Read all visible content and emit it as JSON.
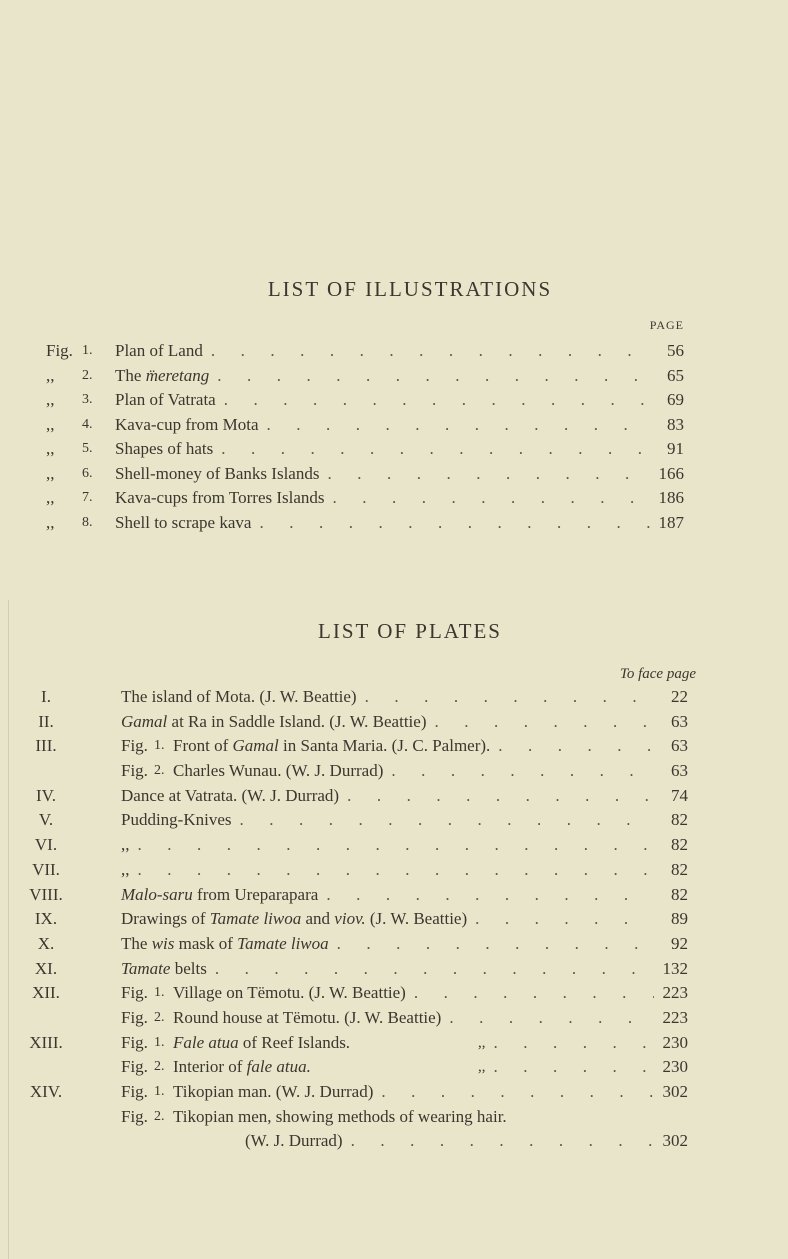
{
  "illustrations": {
    "heading": "LIST OF ILLUSTRATIONS",
    "page_header": "PAGE",
    "rows": [
      {
        "prefix": "Fig.",
        "num": "1.",
        "parts": [
          {
            "t": "Plan of Land"
          }
        ],
        "page": "56"
      },
      {
        "prefix": ",,",
        "num": "2.",
        "parts": [
          {
            "t": "The "
          },
          {
            "t": "m̈eretang",
            "i": true
          }
        ],
        "page": "65"
      },
      {
        "prefix": ",,",
        "num": "3.",
        "parts": [
          {
            "t": "Plan of Vatrata"
          }
        ],
        "page": "69"
      },
      {
        "prefix": ",,",
        "num": "4.",
        "parts": [
          {
            "t": "Kava-cup from Mota"
          }
        ],
        "page": "83"
      },
      {
        "prefix": ",,",
        "num": "5.",
        "parts": [
          {
            "t": "Shapes of hats"
          }
        ],
        "page": "91"
      },
      {
        "prefix": ",,",
        "num": "6.",
        "parts": [
          {
            "t": "Shell-money of Banks Islands"
          }
        ],
        "page": "166"
      },
      {
        "prefix": ",,",
        "num": "7.",
        "parts": [
          {
            "t": "Kava-cups from Torres Islands"
          }
        ],
        "page": "186"
      },
      {
        "prefix": ",,",
        "num": "8.",
        "parts": [
          {
            "t": "Shell to scrape kava"
          }
        ],
        "page": "187"
      }
    ]
  },
  "plates": {
    "heading": "LIST OF PLATES",
    "page_header": "To face page",
    "rows": [
      {
        "numeral": "I.",
        "parts": [
          {
            "t": "The island of Mota.  (J. W. Beattie)"
          }
        ],
        "page": "22"
      },
      {
        "numeral": "II.",
        "parts": [
          {
            "t": "Gamal",
            "i": true
          },
          {
            "t": " at Ra in Saddle Island.  (J. W. Beattie)"
          }
        ],
        "page": "63"
      },
      {
        "numeral": "III.",
        "fig": "Fig.",
        "fignum": "1.",
        "parts": [
          {
            "t": "Front of "
          },
          {
            "t": "Gamal",
            "i": true
          },
          {
            "t": " in Santa Maria.  (J. C. Palmer)."
          }
        ],
        "page": "63"
      },
      {
        "numeral": "",
        "fig": "Fig.",
        "fignum": "2.",
        "parts": [
          {
            "t": "Charles Wunau.  (W. J. Durrad)"
          }
        ],
        "page": "63"
      },
      {
        "numeral": "IV.",
        "parts": [
          {
            "t": "Dance at Vatrata.  (W. J. Durrad)"
          }
        ],
        "page": "74"
      },
      {
        "numeral": "V.",
        "parts": [
          {
            "t": "Pudding-Knives"
          }
        ],
        "page": "82"
      },
      {
        "numeral": "VI.",
        "parts": [
          {
            "t": "      ,,"
          }
        ],
        "page": "82"
      },
      {
        "numeral": "VII.",
        "parts": [
          {
            "t": "      ,,"
          }
        ],
        "page": "82"
      },
      {
        "numeral": "VIII.",
        "parts": [
          {
            "t": "Malo-saru",
            "i": true
          },
          {
            "t": " from Ureparapara"
          }
        ],
        "page": "82"
      },
      {
        "numeral": "IX.",
        "parts": [
          {
            "t": "Drawings of "
          },
          {
            "t": "Tamate liwoa",
            "i": true
          },
          {
            "t": " and "
          },
          {
            "t": "viov.",
            "i": true
          },
          {
            "t": "  (J. W. Beattie)"
          }
        ],
        "page": "89"
      },
      {
        "numeral": "X.",
        "parts": [
          {
            "t": "The "
          },
          {
            "t": "wis",
            "i": true
          },
          {
            "t": " mask of "
          },
          {
            "t": "Tamate liwoa",
            "i": true
          }
        ],
        "page": "92"
      },
      {
        "numeral": "XI.",
        "parts": [
          {
            "t": "Tamate",
            "i": true
          },
          {
            "t": " belts"
          }
        ],
        "page": "132"
      },
      {
        "numeral": "XII.",
        "fig": "Fig.",
        "fignum": "1.",
        "parts": [
          {
            "t": "Village on Tëmotu.  (J. W. Beattie)"
          }
        ],
        "page": "223"
      },
      {
        "numeral": "",
        "fig": "Fig.",
        "fignum": "2.",
        "parts": [
          {
            "t": "Round house at Tëmotu.  (J. W. Beattie)"
          }
        ],
        "page": "223"
      },
      {
        "numeral": "XIII.",
        "fig": "Fig.",
        "fignum": "1.",
        "parts": [
          {
            "t": "Fale atua",
            "i": true
          },
          {
            "t": " of Reef Islands."
          }
        ],
        "ditto": ",,",
        "page": "230"
      },
      {
        "numeral": "",
        "fig": "Fig.",
        "fignum": "2.",
        "parts": [
          {
            "t": "Interior of "
          },
          {
            "t": "fale atua.",
            "i": true
          }
        ],
        "ditto": ",,",
        "page": "230"
      },
      {
        "numeral": "XIV.",
        "fig": "Fig.",
        "fignum": "1.",
        "parts": [
          {
            "t": "Tikopian man.  (W. J. Durrad)"
          }
        ],
        "page": "302"
      },
      {
        "numeral": "",
        "fig": "Fig.",
        "fignum": "2.",
        "parts": [
          {
            "t": "Tikopian men, showing methods of wearing hair."
          }
        ],
        "page": ""
      },
      {
        "numeral": "",
        "cont": true,
        "parts": [
          {
            "t": "(W. J. Durrad)"
          }
        ],
        "page": "302"
      }
    ]
  }
}
